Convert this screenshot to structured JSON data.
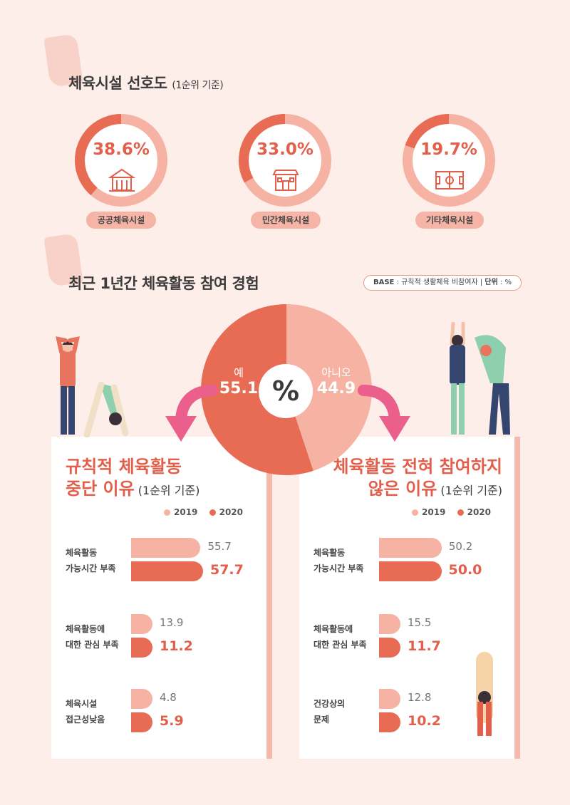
{
  "section1": {
    "title": "체육시설 선호도",
    "subtitle": "(1순위 기준)",
    "items": [
      {
        "value": "38.6%",
        "percent": 38.6,
        "label": "공공체육시설",
        "icon": "public-building-icon"
      },
      {
        "value": "33.0%",
        "percent": 33.0,
        "label": "민간체육시설",
        "icon": "private-building-icon"
      },
      {
        "value": "19.7%",
        "percent": 19.7,
        "label": "기타체육시설",
        "icon": "sports-field-icon"
      }
    ]
  },
  "section2": {
    "title": "최근 1년간  체육활동 참여 경험",
    "base_label": "BASE",
    "base_text": " : 규칙적 생활체육 비참여자 | ",
    "unit_label": "단위",
    "unit_text": " : %",
    "pie": {
      "center": "%",
      "yes_label": "예",
      "yes_value": "55.1",
      "no_label": "아니오",
      "no_value": "44.9"
    }
  },
  "chart_data": [
    {
      "type": "pie",
      "title": "체육시설 선호도 (1순위 기준)",
      "slices": [
        {
          "label": "공공체육시설",
          "value": 38.6
        },
        {
          "label": "민간체육시설",
          "value": 33.0
        },
        {
          "label": "기타체육시설",
          "value": 19.7
        }
      ]
    },
    {
      "type": "pie",
      "title": "최근 1년간 체육활동 참여 경험",
      "unit": "%",
      "slices": [
        {
          "label": "예",
          "value": 55.1,
          "color": "#e86c54"
        },
        {
          "label": "아니오",
          "value": 44.9,
          "color": "#f6b3a4"
        }
      ]
    },
    {
      "type": "bar",
      "title": "규칙적 체육활동 중단 이유 (1순위 기준)",
      "categories": [
        "체육활동\n가능시간 부족",
        "체육활동에\n대한 관심 부족",
        "체육시설\n접근성낮음"
      ],
      "series": [
        {
          "name": "2019",
          "values": [
            55.7,
            13.9,
            4.8
          ],
          "labels": [
            "55.7",
            "13.9",
            "4.8"
          ],
          "color": "#f6b3a4"
        },
        {
          "name": "2020",
          "values": [
            57.7,
            11.2,
            5.9
          ],
          "labels": [
            "57.7",
            "11.2",
            "5.9"
          ],
          "color": "#e86c54"
        }
      ]
    },
    {
      "type": "bar",
      "title": "체육활동 전혀 참여하지 않은 이유 (1순위 기준)",
      "categories": [
        "체육활동\n가능시간 부족",
        "체육활동에\n대한 관심 부족",
        "건강상의\n문제"
      ],
      "series": [
        {
          "name": "2019",
          "values": [
            50.2,
            15.5,
            12.8
          ],
          "labels": [
            "50.2",
            "15.5",
            "12.8"
          ],
          "color": "#f6b3a4"
        },
        {
          "name": "2020",
          "values": [
            50.0,
            11.7,
            10.2
          ],
          "labels": [
            "50.0",
            "11.7",
            "10.2"
          ],
          "color": "#e86c54"
        }
      ]
    }
  ],
  "left_panel": {
    "title_line1": "규칙적 체육활동",
    "title_line2_red": "중단 이유",
    "title_sub": " (1순위 기준)",
    "categories": [
      {
        "line1": "체육활동",
        "line2": "가능시간 부족"
      },
      {
        "line1": "체육활동에",
        "line2": "대한 관심 부족"
      },
      {
        "line1": "체육시설",
        "line2": "접근성낮음"
      }
    ]
  },
  "right_panel": {
    "title_line1": "체육활동 전혀 참여하지",
    "title_line2_red": "않은 이유",
    "title_sub": " (1순위 기준)",
    "categories": [
      {
        "line1": "체육활동",
        "line2": "가능시간 부족"
      },
      {
        "line1": "체육활동에",
        "line2": "대한 관심 부족"
      },
      {
        "line1": "건강상의",
        "line2": "문제"
      }
    ]
  },
  "legend": {
    "y2019": "2019",
    "y2020": "2020"
  },
  "colors": {
    "accent": "#e86c54",
    "light": "#f6b3a4",
    "background": "#fdeeea",
    "arrow": "#ea5f8c"
  }
}
